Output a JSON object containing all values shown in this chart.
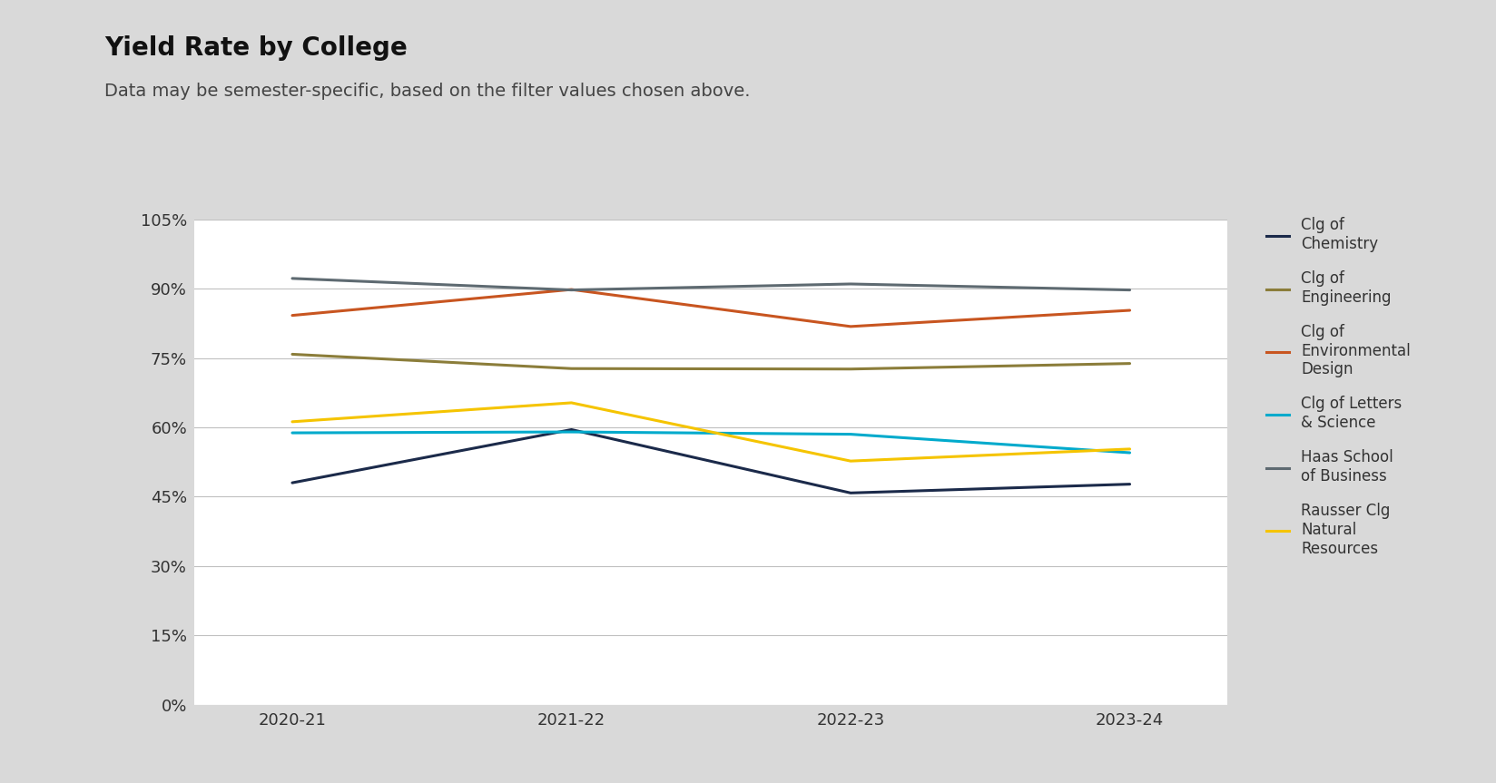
{
  "title": "Yield Rate by College",
  "subtitle": "Data may be semester-specific, based on the filter values chosen above.",
  "x_labels": [
    "2020-21",
    "2021-22",
    "2022-23",
    "2023-24"
  ],
  "x_values": [
    0,
    1,
    2,
    3
  ],
  "series": [
    {
      "name": "Clg of\nChemistry",
      "values": [
        0.48,
        0.595,
        0.458,
        0.477
      ],
      "color": "#1B2A4A",
      "linewidth": 2.2
    },
    {
      "name": "Clg of\nEngineering",
      "values": [
        0.758,
        0.727,
        0.726,
        0.738
      ],
      "color": "#8B7D3A",
      "linewidth": 2.2
    },
    {
      "name": "Clg of\nEnvironmental\nDesign",
      "values": [
        0.842,
        0.898,
        0.818,
        0.853
      ],
      "color": "#C85520",
      "linewidth": 2.2
    },
    {
      "name": "Clg of Letters\n& Science",
      "values": [
        0.588,
        0.59,
        0.585,
        0.545
      ],
      "color": "#00AACC",
      "linewidth": 2.2
    },
    {
      "name": "Haas School\nof Business",
      "values": [
        0.922,
        0.897,
        0.91,
        0.897
      ],
      "color": "#5E6A71",
      "linewidth": 2.2
    },
    {
      "name": "Rausser Clg\nNatural\nResources",
      "values": [
        0.612,
        0.653,
        0.527,
        0.553
      ],
      "color": "#F5C400",
      "linewidth": 2.2
    }
  ],
  "ylim": [
    0,
    1.05
  ],
  "yticks": [
    0,
    0.15,
    0.3,
    0.45,
    0.6,
    0.75,
    0.9,
    1.05
  ],
  "ytick_labels": [
    "0%",
    "15%",
    "30%",
    "45%",
    "60%",
    "75%",
    "90%",
    "105%"
  ],
  "background_color": "#D9D9D9",
  "plot_bg_color": "#FFFFFF",
  "grid_color": "#C0C0C0",
  "title_fontsize": 20,
  "subtitle_fontsize": 14,
  "tick_fontsize": 13,
  "legend_fontsize": 12
}
